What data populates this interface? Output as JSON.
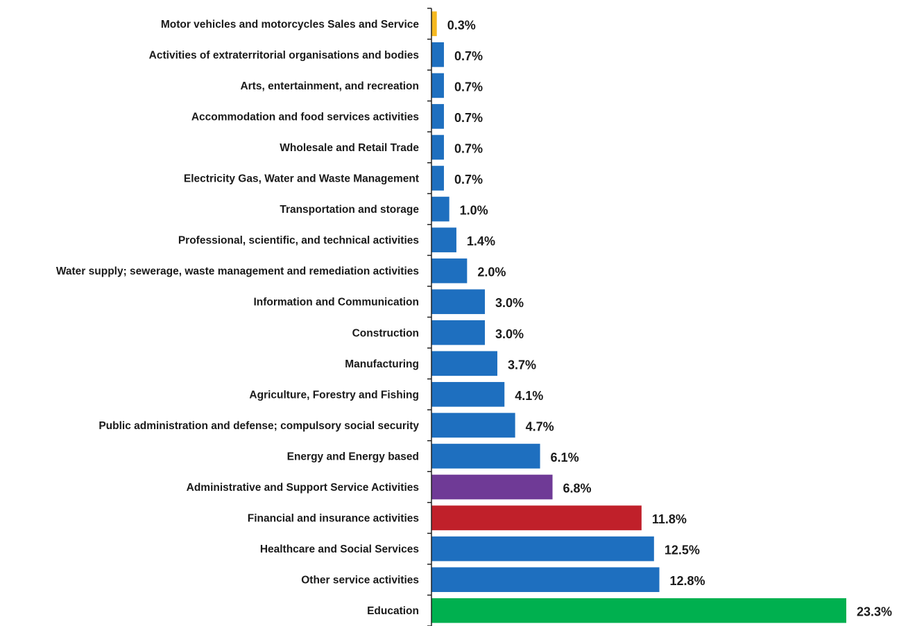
{
  "chart_data": {
    "type": "bar",
    "orientation": "horizontal",
    "categories": [
      "Motor vehicles and motorcycles Sales and Service",
      "Activities of extraterritorial organisations and bodies",
      "Arts, entertainment, and recreation",
      "Accommodation and food services activities",
      "Wholesale and Retail Trade",
      "Electricity Gas, Water and Waste Management",
      "Transportation and storage",
      "Professional, scientific, and technical activities",
      "Water supply; sewerage, waste management and remediation activities",
      "Information and Communication",
      "Construction",
      "Manufacturing",
      "Agriculture, Forestry and Fishing",
      "Public administration and defense; compulsory social security",
      "Energy and Energy based",
      "Administrative and Support Service Activities",
      "Financial and insurance activities",
      "Healthcare and Social Services",
      "Other service activities",
      "Education"
    ],
    "values": [
      0.3,
      0.7,
      0.7,
      0.7,
      0.7,
      0.7,
      1.0,
      1.4,
      2.0,
      3.0,
      3.0,
      3.7,
      4.1,
      4.7,
      6.1,
      6.8,
      11.8,
      12.5,
      12.8,
      23.3
    ],
    "value_labels": [
      "0.3%",
      "0.7%",
      "0.7%",
      "0.7%",
      "0.7%",
      "0.7%",
      "1.0%",
      "1.4%",
      "2.0%",
      "3.0%",
      "3.0%",
      "3.7%",
      "4.1%",
      "4.7%",
      "6.1%",
      "6.8%",
      "11.8%",
      "12.5%",
      "12.8%",
      "23.3%"
    ],
    "colors": [
      "#f5b820",
      "#1e6fbf",
      "#1e6fbf",
      "#1e6fbf",
      "#1e6fbf",
      "#1e6fbf",
      "#1e6fbf",
      "#1e6fbf",
      "#1e6fbf",
      "#1e6fbf",
      "#1e6fbf",
      "#1e6fbf",
      "#1e6fbf",
      "#1e6fbf",
      "#1e6fbf",
      "#6f3a96",
      "#c0202a",
      "#1e6fbf",
      "#1e6fbf",
      "#00b04f"
    ],
    "unit": "%",
    "xlim": [
      0,
      23.3
    ],
    "title": "",
    "xlabel": "",
    "ylabel": "",
    "grid": false,
    "legend": "none"
  }
}
